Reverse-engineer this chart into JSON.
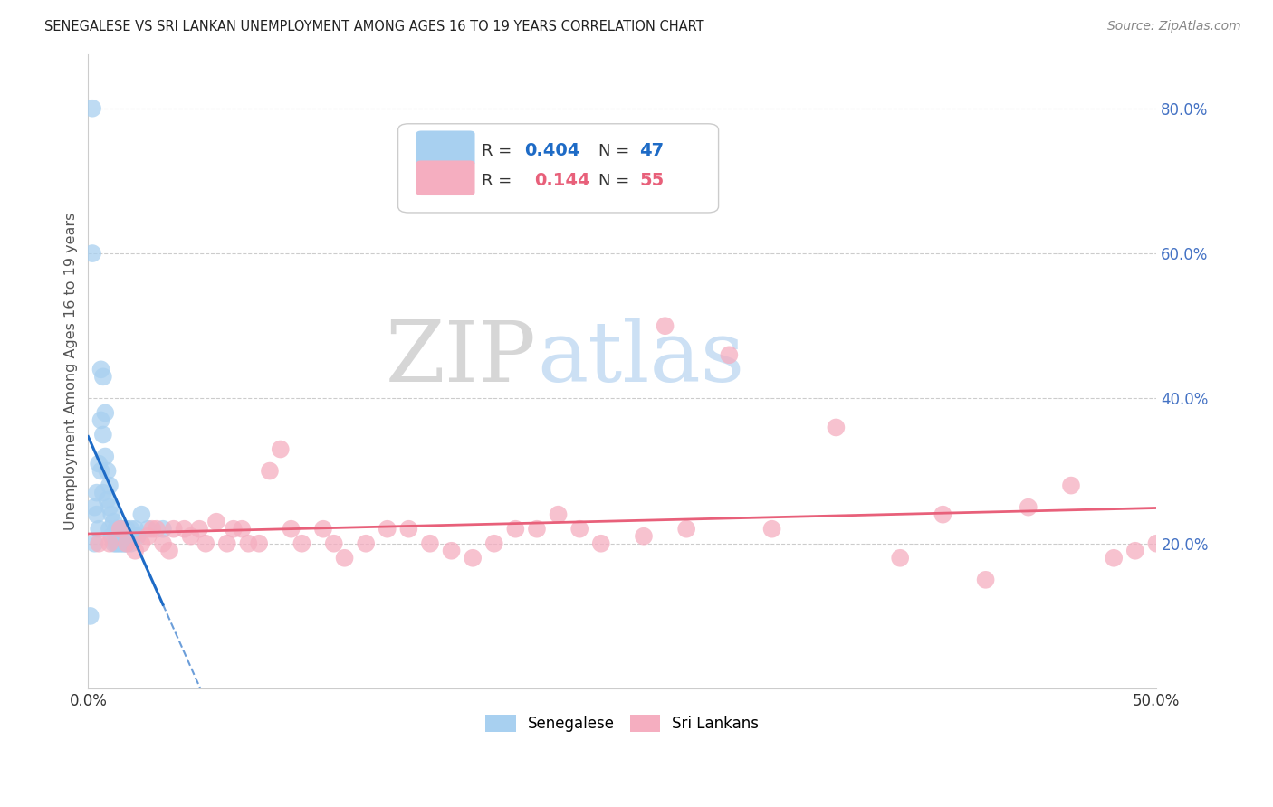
{
  "title": "SENEGALESE VS SRI LANKAN UNEMPLOYMENT AMONG AGES 16 TO 19 YEARS CORRELATION CHART",
  "source": "Source: ZipAtlas.com",
  "ylabel": "Unemployment Among Ages 16 to 19 years",
  "xlim": [
    0.0,
    0.5
  ],
  "ylim": [
    0.0,
    0.875
  ],
  "x_tick_positions": [
    0.0,
    0.05,
    0.1,
    0.15,
    0.2,
    0.25,
    0.3,
    0.35,
    0.4,
    0.45,
    0.5
  ],
  "x_tick_labels": [
    "0.0%",
    "",
    "",
    "",
    "",
    "",
    "",
    "",
    "",
    "",
    "50.0%"
  ],
  "y_tick_positions": [
    0.2,
    0.4,
    0.6,
    0.8
  ],
  "y_tick_labels": [
    "20.0%",
    "40.0%",
    "60.0%",
    "80.0%"
  ],
  "senegalese_color": "#a8d0f0",
  "srilankans_color": "#f5aec0",
  "senegalese_line_color": "#1e6bc6",
  "srilankans_line_color": "#e8607a",
  "watermark_zip": "ZIP",
  "watermark_atlas": "atlas",
  "senegalese_x": [
    0.001,
    0.002,
    0.003,
    0.003,
    0.004,
    0.004,
    0.005,
    0.005,
    0.006,
    0.006,
    0.006,
    0.007,
    0.007,
    0.007,
    0.008,
    0.008,
    0.009,
    0.009,
    0.01,
    0.01,
    0.01,
    0.011,
    0.011,
    0.012,
    0.012,
    0.013,
    0.013,
    0.014,
    0.014,
    0.015,
    0.015,
    0.016,
    0.016,
    0.017,
    0.017,
    0.018,
    0.018,
    0.019,
    0.02,
    0.02,
    0.021,
    0.022,
    0.023,
    0.025,
    0.028,
    0.035,
    0.002
  ],
  "senegalese_y": [
    0.1,
    0.8,
    0.25,
    0.2,
    0.27,
    0.24,
    0.31,
    0.22,
    0.44,
    0.37,
    0.3,
    0.43,
    0.35,
    0.27,
    0.38,
    0.32,
    0.3,
    0.26,
    0.28,
    0.25,
    0.22,
    0.24,
    0.21,
    0.23,
    0.2,
    0.22,
    0.2,
    0.22,
    0.2,
    0.22,
    0.2,
    0.22,
    0.2,
    0.22,
    0.2,
    0.22,
    0.2,
    0.21,
    0.22,
    0.2,
    0.21,
    0.22,
    0.21,
    0.24,
    0.22,
    0.22,
    0.6
  ],
  "srilankans_x": [
    0.005,
    0.01,
    0.015,
    0.018,
    0.022,
    0.025,
    0.028,
    0.03,
    0.032,
    0.035,
    0.038,
    0.04,
    0.045,
    0.048,
    0.052,
    0.055,
    0.06,
    0.065,
    0.068,
    0.072,
    0.075,
    0.08,
    0.085,
    0.09,
    0.095,
    0.1,
    0.11,
    0.115,
    0.12,
    0.13,
    0.14,
    0.15,
    0.16,
    0.17,
    0.18,
    0.19,
    0.2,
    0.21,
    0.22,
    0.23,
    0.24,
    0.26,
    0.28,
    0.3,
    0.32,
    0.35,
    0.38,
    0.4,
    0.42,
    0.44,
    0.46,
    0.48,
    0.49,
    0.5,
    0.27
  ],
  "srilankans_y": [
    0.2,
    0.2,
    0.22,
    0.2,
    0.19,
    0.2,
    0.21,
    0.22,
    0.22,
    0.2,
    0.19,
    0.22,
    0.22,
    0.21,
    0.22,
    0.2,
    0.23,
    0.2,
    0.22,
    0.22,
    0.2,
    0.2,
    0.3,
    0.33,
    0.22,
    0.2,
    0.22,
    0.2,
    0.18,
    0.2,
    0.22,
    0.22,
    0.2,
    0.19,
    0.18,
    0.2,
    0.22,
    0.22,
    0.24,
    0.22,
    0.2,
    0.21,
    0.22,
    0.46,
    0.22,
    0.36,
    0.18,
    0.24,
    0.15,
    0.25,
    0.28,
    0.18,
    0.19,
    0.2,
    0.5
  ],
  "legend_sen_R": "0.404",
  "legend_sen_N": "47",
  "legend_sri_R": "0.144",
  "legend_sri_N": "55"
}
